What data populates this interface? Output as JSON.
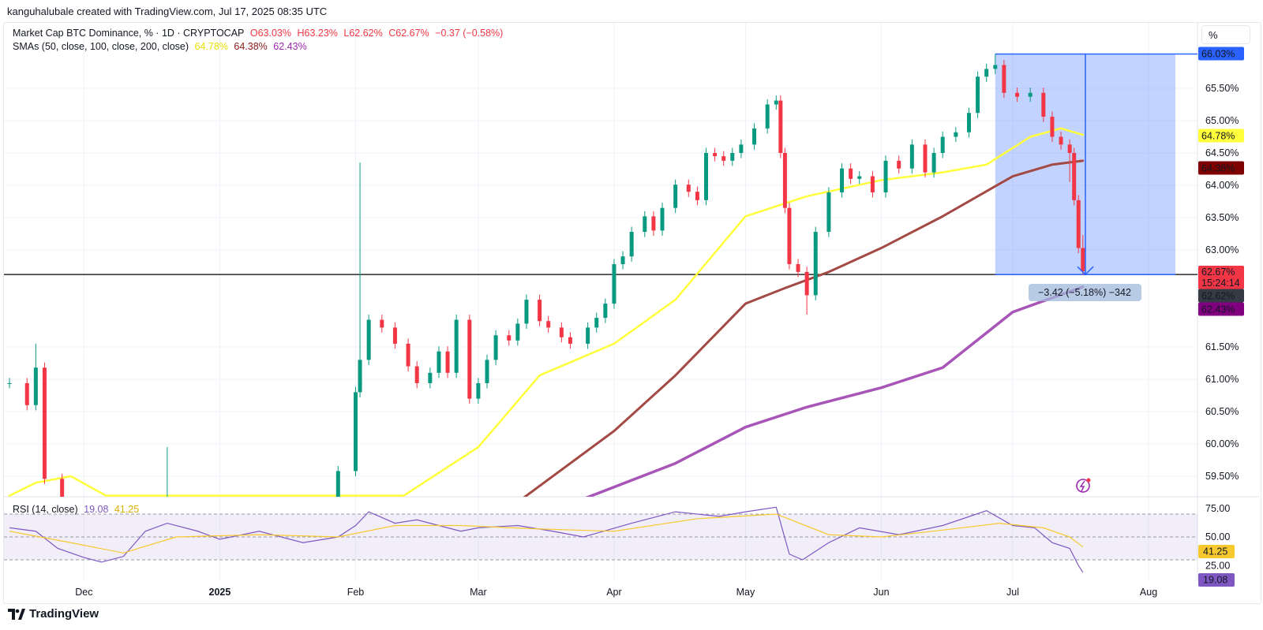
{
  "credit": "kanguhalubale created with TradingView.com, Jul 17, 2025 08:35 UTC",
  "legend": {
    "symbol": "Market Cap BTC Dominance, % · 1D · CRYPTOCAP",
    "open": "O63.03%",
    "high": "H63.23%",
    "low": "L62.62%",
    "close": "C62.67%",
    "change": "−0.37 (−0.58%)",
    "sma_label": "SMAs (50, close, 100, close, 200, close)",
    "sma50": "64.78%",
    "sma100": "64.38%",
    "sma200": "62.43%",
    "rsi_label": "RSI (14, close)",
    "rsi_value": "19.08",
    "rsi_ma": "41.25"
  },
  "scale_button": "%",
  "price_labels": {
    "measure_top": "66.03%",
    "sma50": "64.78%",
    "sma100": "64.38%",
    "last": "62.67%",
    "countdown": "15:24:14",
    "low": "62.62%",
    "sma200": "62.43%"
  },
  "rsi_labels": {
    "ma": "41.25",
    "rsi": "19.08"
  },
  "measure_label": "−3.42 (−5.18%) −342",
  "brand": "TradingView",
  "colors": {
    "up": "#089981",
    "down": "#f23645",
    "sma50": "#ffff3b",
    "sma100": "#a34a45",
    "sma200": "#a855b8",
    "rsi": "#7e57c2",
    "rsi_ma": "#f7c92f",
    "measure": "#2962ff"
  },
  "chart_data": [
    {
      "type": "candlestick",
      "title": "Market Cap BTC Dominance, % · 1D · CRYPTOCAP",
      "ylabel": "%",
      "ylim": [
        59.25,
        66.3
      ],
      "y_ticks": [
        "65.50%",
        "65.00%",
        "64.50%",
        "64.00%",
        "63.50%",
        "63.00%",
        "61.50%",
        "61.00%",
        "60.50%",
        "60.00%",
        "59.50%"
      ],
      "x_ticks": [
        "Dec",
        "2025",
        "Feb",
        "Mar",
        "Apr",
        "May",
        "Jun",
        "Jul",
        "Aug"
      ],
      "candles": [
        {
          "d": "2024-11-14",
          "c": 60.94
        },
        {
          "d": "2024-11-18",
          "c": 60.6
        },
        {
          "d": "2024-11-20",
          "c": 61.18,
          "h": 61.55
        },
        {
          "d": "2024-11-22",
          "c": 59.46
        },
        {
          "d": "2024-11-26",
          "c": 58.9
        },
        {
          "d": "2024-12-20",
          "c": 59.0,
          "h": 59.95
        },
        {
          "d": "2025-01-10",
          "c": 58.9
        },
        {
          "d": "2025-01-28",
          "c": 59.58
        },
        {
          "d": "2025-02-01",
          "c": 60.8
        },
        {
          "d": "2025-02-02",
          "c": 61.3,
          "h": 64.35
        },
        {
          "d": "2025-02-04",
          "c": 61.92
        },
        {
          "d": "2025-02-07",
          "c": 61.8
        },
        {
          "d": "2025-02-10",
          "c": 61.55
        },
        {
          "d": "2025-02-13",
          "c": 61.2
        },
        {
          "d": "2025-02-15",
          "c": 60.94
        },
        {
          "d": "2025-02-18",
          "c": 61.1
        },
        {
          "d": "2025-02-20",
          "c": 61.43
        },
        {
          "d": "2025-02-22",
          "c": 61.1
        },
        {
          "d": "2025-02-24",
          "c": 61.92
        },
        {
          "d": "2025-02-27",
          "c": 60.7
        },
        {
          "d": "2025-03-01",
          "c": 60.94
        },
        {
          "d": "2025-03-03",
          "c": 61.3
        },
        {
          "d": "2025-03-05",
          "c": 61.68
        },
        {
          "d": "2025-03-08",
          "c": 61.6
        },
        {
          "d": "2025-03-10",
          "c": 61.86
        },
        {
          "d": "2025-03-12",
          "c": 62.23
        },
        {
          "d": "2025-03-15",
          "c": 61.9
        },
        {
          "d": "2025-03-17",
          "c": 61.8
        },
        {
          "d": "2025-03-20",
          "c": 61.65
        },
        {
          "d": "2025-03-22",
          "c": 61.55
        },
        {
          "d": "2025-03-26",
          "c": 61.8
        },
        {
          "d": "2025-03-28",
          "c": 61.95
        },
        {
          "d": "2025-03-30",
          "c": 62.17
        },
        {
          "d": "2025-04-01",
          "c": 62.78
        },
        {
          "d": "2025-04-03",
          "c": 62.9
        },
        {
          "d": "2025-04-05",
          "c": 63.28
        },
        {
          "d": "2025-04-08",
          "c": 63.52
        },
        {
          "d": "2025-04-10",
          "c": 63.3
        },
        {
          "d": "2025-04-12",
          "c": 63.65
        },
        {
          "d": "2025-04-15",
          "c": 64.01
        },
        {
          "d": "2025-04-18",
          "c": 63.9
        },
        {
          "d": "2025-04-20",
          "c": 63.77
        },
        {
          "d": "2025-04-22",
          "c": 64.5
        },
        {
          "d": "2025-04-24",
          "c": 64.45
        },
        {
          "d": "2025-04-26",
          "c": 64.38
        },
        {
          "d": "2025-04-28",
          "c": 64.5
        },
        {
          "d": "2025-04-30",
          "c": 64.63
        },
        {
          "d": "2025-05-03",
          "c": 64.88
        },
        {
          "d": "2025-05-06",
          "c": 65.25
        },
        {
          "d": "2025-05-08",
          "c": 65.31
        },
        {
          "d": "2025-05-09",
          "c": 64.5
        },
        {
          "d": "2025-05-10",
          "c": 63.65
        },
        {
          "d": "2025-05-11",
          "c": 62.78
        },
        {
          "d": "2025-05-13",
          "c": 62.66
        },
        {
          "d": "2025-05-15",
          "c": 62.3,
          "l": 62.0
        },
        {
          "d": "2025-05-17",
          "c": 63.28
        },
        {
          "d": "2025-05-20",
          "c": 63.89
        },
        {
          "d": "2025-05-23",
          "c": 64.26
        },
        {
          "d": "2025-05-25",
          "c": 64.1
        },
        {
          "d": "2025-05-27",
          "c": 64.14
        },
        {
          "d": "2025-05-30",
          "c": 63.89
        },
        {
          "d": "2025-06-02",
          "c": 64.38
        },
        {
          "d": "2025-06-05",
          "c": 64.26
        },
        {
          "d": "2025-06-08",
          "c": 64.63
        },
        {
          "d": "2025-06-11",
          "c": 64.2
        },
        {
          "d": "2025-06-13",
          "c": 64.5
        },
        {
          "d": "2025-06-15",
          "c": 64.75
        },
        {
          "d": "2025-06-18",
          "c": 64.82
        },
        {
          "d": "2025-06-21",
          "c": 65.12
        },
        {
          "d": "2025-06-23",
          "c": 65.68
        },
        {
          "d": "2025-06-25",
          "c": 65.8
        },
        {
          "d": "2025-06-27",
          "c": 65.86,
          "h": 66.03
        },
        {
          "d": "2025-06-29",
          "c": 65.43
        },
        {
          "d": "2025-07-02",
          "c": 65.37
        },
        {
          "d": "2025-07-05",
          "c": 65.43
        },
        {
          "d": "2025-07-08",
          "c": 65.06
        },
        {
          "d": "2025-07-10",
          "c": 64.75
        },
        {
          "d": "2025-07-12",
          "c": 64.63
        },
        {
          "d": "2025-07-14",
          "c": 64.5,
          "l": 64.05
        },
        {
          "d": "2025-07-15",
          "c": 63.77
        },
        {
          "d": "2025-07-16",
          "c": 63.03
        },
        {
          "d": "2025-07-17",
          "o": 63.03,
          "h": 63.23,
          "l": 62.62,
          "c": 62.67
        }
      ],
      "series": [
        {
          "name": "SMA 50",
          "points": [
            [
              "2024-11-14",
              59.2
            ],
            [
              "2024-11-20",
              59.4
            ],
            [
              "2024-11-28",
              59.5
            ],
            [
              "2024-12-06",
              59.2
            ],
            [
              "2025-02-12",
              59.2
            ],
            [
              "2025-03-01",
              59.95
            ],
            [
              "2025-03-15",
              61.06
            ],
            [
              "2025-04-01",
              61.55
            ],
            [
              "2025-04-15",
              62.23
            ],
            [
              "2025-05-01",
              63.52
            ],
            [
              "2025-05-15",
              63.83
            ],
            [
              "2025-06-01",
              64.08
            ],
            [
              "2025-06-15",
              64.2
            ],
            [
              "2025-06-25",
              64.32
            ],
            [
              "2025-07-05",
              64.75
            ],
            [
              "2025-07-12",
              64.88
            ],
            [
              "2025-07-17",
              64.78
            ]
          ]
        },
        {
          "name": "SMA 100",
          "points": [
            [
              "2025-03-10",
              59.1
            ],
            [
              "2025-04-01",
              60.2
            ],
            [
              "2025-04-15",
              61.06
            ],
            [
              "2025-05-01",
              62.17
            ],
            [
              "2025-05-10",
              62.41
            ],
            [
              "2025-05-20",
              62.66
            ],
            [
              "2025-06-01",
              63.03
            ],
            [
              "2025-06-15",
              63.52
            ],
            [
              "2025-07-01",
              64.14
            ],
            [
              "2025-07-10",
              64.32
            ],
            [
              "2025-07-17",
              64.38
            ]
          ]
        },
        {
          "name": "SMA 200",
          "points": [
            [
              "2025-03-25",
              59.15
            ],
            [
              "2025-04-15",
              59.7
            ],
            [
              "2025-05-01",
              60.26
            ],
            [
              "2025-05-15",
              60.57
            ],
            [
              "2025-06-01",
              60.87
            ],
            [
              "2025-06-15",
              61.18
            ],
            [
              "2025-07-01",
              62.04
            ],
            [
              "2025-07-17",
              62.43
            ]
          ]
        }
      ],
      "horizontal_line": 62.62,
      "measure": {
        "from": "2025-06-27",
        "to": "2025-07-17",
        "top": 66.03,
        "bottom": 62.62,
        "change": -3.42,
        "change_pct": -5.18,
        "ticks": -342
      }
    },
    {
      "type": "line",
      "title": "RSI (14, close)",
      "ylim": [
        15,
        80
      ],
      "y_ticks": [
        "75.00",
        "50.00",
        "25.00"
      ],
      "bands": [
        30,
        50,
        70
      ],
      "series": [
        {
          "name": "RSI",
          "points": [
            [
              "2024-11-14",
              58
            ],
            [
              "2024-11-20",
              55
            ],
            [
              "2024-11-25",
              40
            ],
            [
              "2024-12-01",
              32
            ],
            [
              "2024-12-05",
              28
            ],
            [
              "2024-12-10",
              33
            ],
            [
              "2024-12-15",
              55
            ],
            [
              "2024-12-20",
              62
            ],
            [
              "2024-12-27",
              55
            ],
            [
              "2025-01-01",
              48
            ],
            [
              "2025-01-10",
              55
            ],
            [
              "2025-01-20",
              45
            ],
            [
              "2025-01-28",
              50
            ],
            [
              "2025-02-01",
              60
            ],
            [
              "2025-02-04",
              72
            ],
            [
              "2025-02-10",
              62
            ],
            [
              "2025-02-15",
              65
            ],
            [
              "2025-02-25",
              55
            ],
            [
              "2025-03-01",
              58
            ],
            [
              "2025-03-10",
              60
            ],
            [
              "2025-03-18",
              55
            ],
            [
              "2025-03-25",
              50
            ],
            [
              "2025-04-05",
              62
            ],
            [
              "2025-04-15",
              72
            ],
            [
              "2025-04-25",
              68
            ],
            [
              "2025-05-01",
              72
            ],
            [
              "2025-05-08",
              76
            ],
            [
              "2025-05-11",
              35
            ],
            [
              "2025-05-14",
              30
            ],
            [
              "2025-05-20",
              45
            ],
            [
              "2025-05-27",
              58
            ],
            [
              "2025-06-05",
              52
            ],
            [
              "2025-06-15",
              60
            ],
            [
              "2025-06-25",
              73
            ],
            [
              "2025-07-01",
              60
            ],
            [
              "2025-07-06",
              58
            ],
            [
              "2025-07-10",
              45
            ],
            [
              "2025-07-14",
              40
            ],
            [
              "2025-07-16",
              25
            ],
            [
              "2025-07-17",
              19.08
            ]
          ]
        },
        {
          "name": "RSI-based MA",
          "points": [
            [
              "2024-11-14",
              55
            ],
            [
              "2024-11-28",
              45
            ],
            [
              "2024-12-10",
              36
            ],
            [
              "2024-12-22",
              50
            ],
            [
              "2025-01-10",
              52
            ],
            [
              "2025-01-28",
              50
            ],
            [
              "2025-02-10",
              60
            ],
            [
              "2025-02-25",
              60
            ],
            [
              "2025-03-15",
              57
            ],
            [
              "2025-04-01",
              55
            ],
            [
              "2025-04-20",
              66
            ],
            [
              "2025-05-08",
              70
            ],
            [
              "2025-05-20",
              52
            ],
            [
              "2025-06-01",
              50
            ],
            [
              "2025-06-15",
              56
            ],
            [
              "2025-06-28",
              62
            ],
            [
              "2025-07-08",
              58
            ],
            [
              "2025-07-14",
              50
            ],
            [
              "2025-07-17",
              41.25
            ]
          ]
        }
      ]
    }
  ]
}
